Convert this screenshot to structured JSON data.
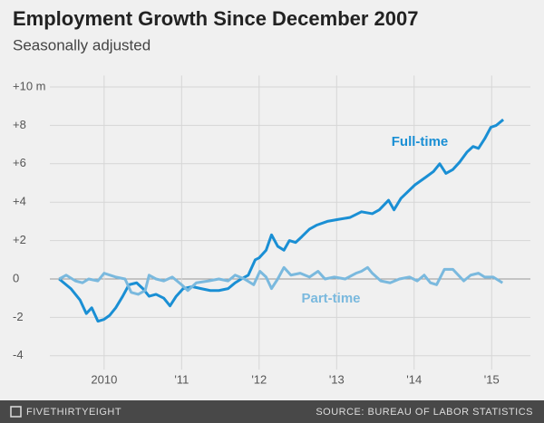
{
  "chart_data": {
    "type": "line",
    "title": "Employment Growth Since December 2007",
    "subtitle": "Seasonally adjusted",
    "xlim": [
      2009.3,
      2015.5
    ],
    "xticks": [
      2010,
      {
        "value": 2011,
        "label": "'11"
      },
      {
        "value": 2012,
        "label": "'12"
      },
      {
        "value": 2013,
        "label": "'13"
      },
      {
        "value": 2014,
        "label": "'14"
      },
      {
        "value": 2015,
        "label": "'15"
      }
    ],
    "ylim": [
      -5,
      10.5
    ],
    "yticks": [
      {
        "value": 10,
        "label": "+10 m"
      },
      {
        "value": 8,
        "label": "+8"
      },
      {
        "value": 6,
        "label": "+6"
      },
      {
        "value": 4,
        "label": "+4"
      },
      {
        "value": 2,
        "label": "+2"
      },
      0,
      -2,
      -4
    ],
    "grid": true,
    "series": [
      {
        "name": "Full-time",
        "color": "#1a8fd4",
        "x": [
          2009.42,
          2009.57,
          2009.69,
          2009.77,
          2009.84,
          2009.92,
          2010.0,
          2010.07,
          2010.15,
          2010.24,
          2010.32,
          2010.42,
          2010.5,
          2010.58,
          2010.67,
          2010.77,
          2010.85,
          2010.93,
          2011.02,
          2011.14,
          2011.25,
          2011.37,
          2011.48,
          2011.6,
          2011.69,
          2011.77,
          2011.86,
          2011.95,
          2012.0,
          2012.09,
          2012.16,
          2012.24,
          2012.32,
          2012.39,
          2012.47,
          2012.55,
          2012.65,
          2012.74,
          2012.88,
          2013.02,
          2013.17,
          2013.32,
          2013.46,
          2013.55,
          2013.67,
          2013.74,
          2013.83,
          2014.01,
          2014.15,
          2014.25,
          2014.33,
          2014.41,
          2014.5,
          2014.59,
          2014.68,
          2014.76,
          2014.83,
          2014.91,
          2014.99,
          2015.06,
          2015.15
        ],
        "values": [
          0,
          -0.5,
          -1.1,
          -1.8,
          -1.5,
          -2.2,
          -2.1,
          -1.9,
          -1.5,
          -0.9,
          -0.3,
          -0.2,
          -0.5,
          -0.9,
          -0.8,
          -1.0,
          -1.4,
          -0.9,
          -0.5,
          -0.4,
          -0.5,
          -0.6,
          -0.6,
          -0.5,
          -0.2,
          0,
          0.2,
          1.0,
          1.1,
          1.5,
          2.3,
          1.7,
          1.5,
          2.0,
          1.9,
          2.2,
          2.6,
          2.8,
          3.0,
          3.1,
          3.2,
          3.5,
          3.4,
          3.6,
          4.1,
          3.6,
          4.2,
          4.9,
          5.3,
          5.6,
          6.0,
          5.5,
          5.7,
          6.1,
          6.6,
          6.9,
          6.8,
          7.3,
          7.9,
          8.0,
          8.3
        ]
      },
      {
        "name": "Part-time",
        "color": "#7ab9de",
        "x": [
          2009.42,
          2009.51,
          2009.63,
          2009.72,
          2009.8,
          2009.92,
          2010.0,
          2010.15,
          2010.27,
          2010.35,
          2010.44,
          2010.53,
          2010.58,
          2010.67,
          2010.77,
          2010.88,
          2011.0,
          2011.08,
          2011.19,
          2011.35,
          2011.48,
          2011.6,
          2011.69,
          2011.81,
          2011.93,
          2012.01,
          2012.09,
          2012.16,
          2012.24,
          2012.32,
          2012.41,
          2012.53,
          2012.65,
          2012.76,
          2012.85,
          2012.97,
          2013.11,
          2013.25,
          2013.32,
          2013.4,
          2013.46,
          2013.57,
          2013.69,
          2013.81,
          2013.94,
          2014.04,
          2014.13,
          2014.21,
          2014.29,
          2014.39,
          2014.5,
          2014.64,
          2014.73,
          2014.83,
          2014.91,
          2015.02,
          2015.14
        ],
        "values": [
          0,
          0.2,
          -0.1,
          -0.2,
          0,
          -0.1,
          0.3,
          0.1,
          0.0,
          -0.7,
          -0.8,
          -0.6,
          0.2,
          0.0,
          -0.1,
          0.1,
          -0.3,
          -0.6,
          -0.2,
          -0.1,
          0.0,
          -0.1,
          0.2,
          0,
          -0.3,
          0.4,
          0.1,
          -0.5,
          0,
          0.6,
          0.2,
          0.3,
          0.1,
          0.4,
          0.0,
          0.1,
          0.0,
          0.3,
          0.4,
          0.6,
          0.3,
          -0.1,
          -0.2,
          0,
          0.1,
          -0.1,
          0.2,
          -0.2,
          -0.3,
          0.5,
          0.5,
          -0.1,
          0.2,
          0.3,
          0.1,
          0.1,
          -0.2
        ]
      }
    ],
    "brand": "FIVETHIRTYEIGHT",
    "source": "SOURCE: BUREAU OF LABOR STATISTICS"
  }
}
